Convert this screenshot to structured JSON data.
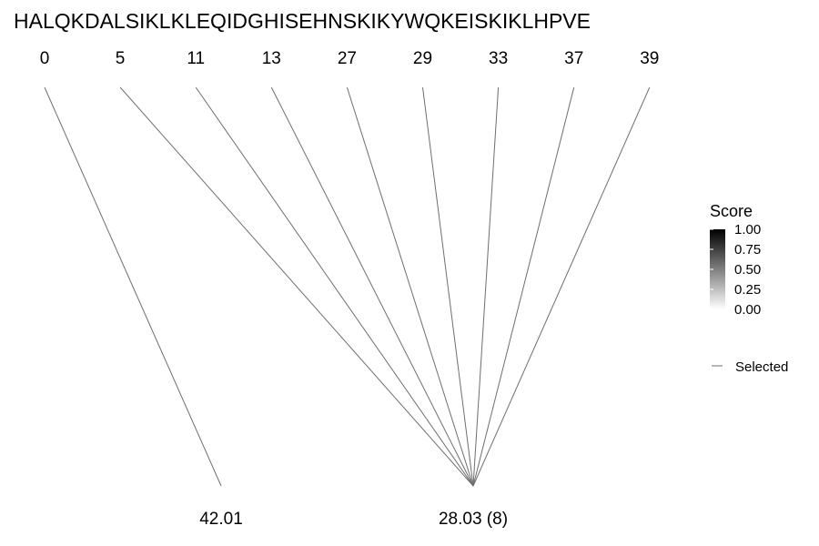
{
  "chart_data": {
    "type": "diagram",
    "title": "HALQKDALSIKLKLEQIDGHISEHNSKIKYWQKEISKIKLHPVE",
    "top_positions": [
      "0",
      "5",
      "11",
      "13",
      "27",
      "29",
      "33",
      "37",
      "39"
    ],
    "bottom_nodes": [
      {
        "label": "42.01",
        "sources": [
          "0"
        ]
      },
      {
        "label": "28.03 (8)",
        "sources": [
          "5",
          "11",
          "13",
          "27",
          "29",
          "33",
          "37",
          "39"
        ]
      }
    ],
    "legend": {
      "score_title": "Score",
      "score_ticks": [
        "1.00",
        "0.75",
        "0.50",
        "0.25",
        "0.00"
      ],
      "score_range": [
        0,
        1
      ],
      "score_color_high": "#000000",
      "score_color_low": "#ffffff",
      "selected_label": "Selected",
      "selected_line_color": "#6e6e6e"
    }
  }
}
